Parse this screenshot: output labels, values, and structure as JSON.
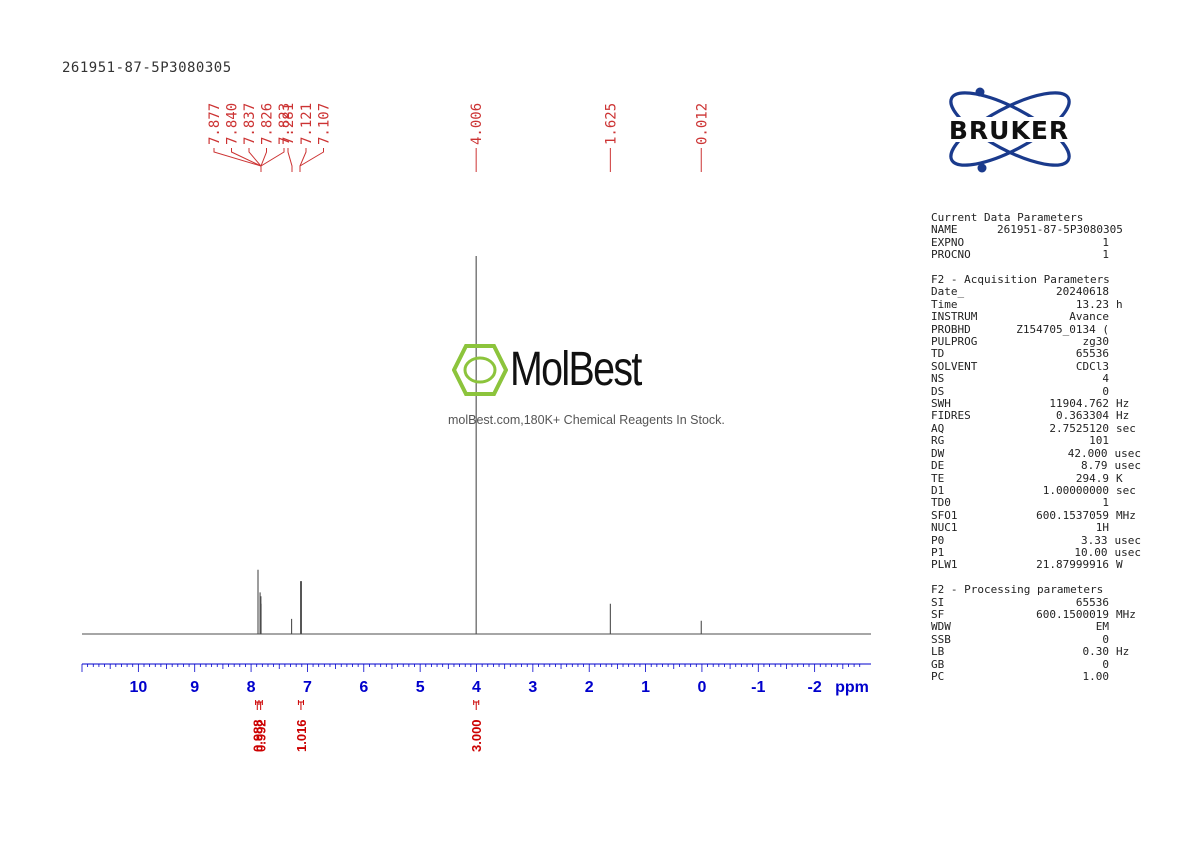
{
  "sample_title": "261951-87-5P3080305",
  "logo": {
    "brand": "BRUKER"
  },
  "watermark": {
    "name": "MolBest",
    "text": "molBest.com,180K+ Chemical Reagents In Stock."
  },
  "chart_data": {
    "type": "line",
    "title": "261951-87-5P3080305",
    "xlabel": "ppm",
    "xlim": [
      11.0,
      -3.0
    ],
    "x_reversed": true,
    "x_ticks": [
      10,
      9,
      8,
      7,
      6,
      5,
      4,
      3,
      2,
      1,
      0,
      -1,
      -2
    ],
    "x_tick_labels": [
      "10",
      "9",
      "8",
      "7",
      "6",
      "5",
      "4",
      "3",
      "2",
      "1",
      "0",
      "-1",
      "-2"
    ],
    "peak_labels": [
      "7.877",
      "7.840",
      "7.837",
      "7.826",
      "7.823",
      "7.281",
      "7.121",
      "7.107",
      "4.006",
      "1.625",
      "0.012"
    ],
    "peaks": [
      {
        "ppm": 7.877,
        "intensity": 0.17
      },
      {
        "ppm": 7.84,
        "intensity": 0.11
      },
      {
        "ppm": 7.837,
        "intensity": 0.08
      },
      {
        "ppm": 7.826,
        "intensity": 0.1
      },
      {
        "ppm": 7.823,
        "intensity": 0.08
      },
      {
        "ppm": 7.281,
        "intensity": 0.04
      },
      {
        "ppm": 7.121,
        "intensity": 0.14
      },
      {
        "ppm": 7.107,
        "intensity": 0.14
      },
      {
        "ppm": 4.006,
        "intensity": 1.0
      },
      {
        "ppm": 1.625,
        "intensity": 0.08
      },
      {
        "ppm": 0.012,
        "intensity": 0.035
      }
    ],
    "integrals": [
      {
        "from": 7.92,
        "to": 7.86,
        "value": "0.988"
      },
      {
        "from": 7.86,
        "to": 7.8,
        "value": "0.992"
      },
      {
        "from": 7.16,
        "to": 7.07,
        "value": "1.016"
      },
      {
        "from": 4.05,
        "to": 3.96,
        "value": "3.000"
      }
    ],
    "colors": {
      "spectrum": "#4d4d4d",
      "axis": "#0000cc",
      "peak_labels": "#cc3333",
      "integrals": "#cc0000"
    }
  },
  "parameters": {
    "sections": [
      {
        "title": "Current Data Parameters",
        "rows": [
          {
            "k": "NAME",
            "v": "261951-87-5P3080305",
            "u": ""
          },
          {
            "k": "EXPNO",
            "v": "1",
            "u": ""
          },
          {
            "k": "PROCNO",
            "v": "1",
            "u": ""
          }
        ]
      },
      {
        "title": "F2 - Acquisition Parameters",
        "rows": [
          {
            "k": "Date_",
            "v": "20240618",
            "u": ""
          },
          {
            "k": "Time",
            "v": "13.23",
            "u": "h"
          },
          {
            "k": "INSTRUM",
            "v": "Avance",
            "u": ""
          },
          {
            "k": "PROBHD",
            "v": "Z154705_0134 (",
            "u": ""
          },
          {
            "k": "PULPROG",
            "v": "zg30",
            "u": ""
          },
          {
            "k": "TD",
            "v": "65536",
            "u": ""
          },
          {
            "k": "SOLVENT",
            "v": "CDCl3",
            "u": ""
          },
          {
            "k": "NS",
            "v": "4",
            "u": ""
          },
          {
            "k": "DS",
            "v": "0",
            "u": ""
          },
          {
            "k": "SWH",
            "v": "11904.762",
            "u": "Hz"
          },
          {
            "k": "FIDRES",
            "v": "0.363304",
            "u": "Hz"
          },
          {
            "k": "AQ",
            "v": "2.7525120",
            "u": "sec"
          },
          {
            "k": "RG",
            "v": "101",
            "u": ""
          },
          {
            "k": "DW",
            "v": "42.000",
            "u": "usec"
          },
          {
            "k": "DE",
            "v": "8.79",
            "u": "usec"
          },
          {
            "k": "TE",
            "v": "294.9",
            "u": "K"
          },
          {
            "k": "D1",
            "v": "1.00000000",
            "u": "sec"
          },
          {
            "k": "TD0",
            "v": "1",
            "u": ""
          },
          {
            "k": "SFO1",
            "v": "600.1537059",
            "u": "MHz"
          },
          {
            "k": "NUC1",
            "v": "1H",
            "u": ""
          },
          {
            "k": "P0",
            "v": "3.33",
            "u": "usec"
          },
          {
            "k": "P1",
            "v": "10.00",
            "u": "usec"
          },
          {
            "k": "PLW1",
            "v": "21.87999916",
            "u": "W"
          }
        ]
      },
      {
        "title": "F2 - Processing parameters",
        "rows": [
          {
            "k": "SI",
            "v": "65536",
            "u": ""
          },
          {
            "k": "SF",
            "v": "600.1500019",
            "u": "MHz"
          },
          {
            "k": "WDW",
            "v": "EM",
            "u": ""
          },
          {
            "k": "SSB",
            "v": "0",
            "u": ""
          },
          {
            "k": "LB",
            "v": "0.30",
            "u": "Hz"
          },
          {
            "k": "GB",
            "v": "0",
            "u": ""
          },
          {
            "k": "PC",
            "v": "1.00",
            "u": ""
          }
        ]
      }
    ]
  }
}
